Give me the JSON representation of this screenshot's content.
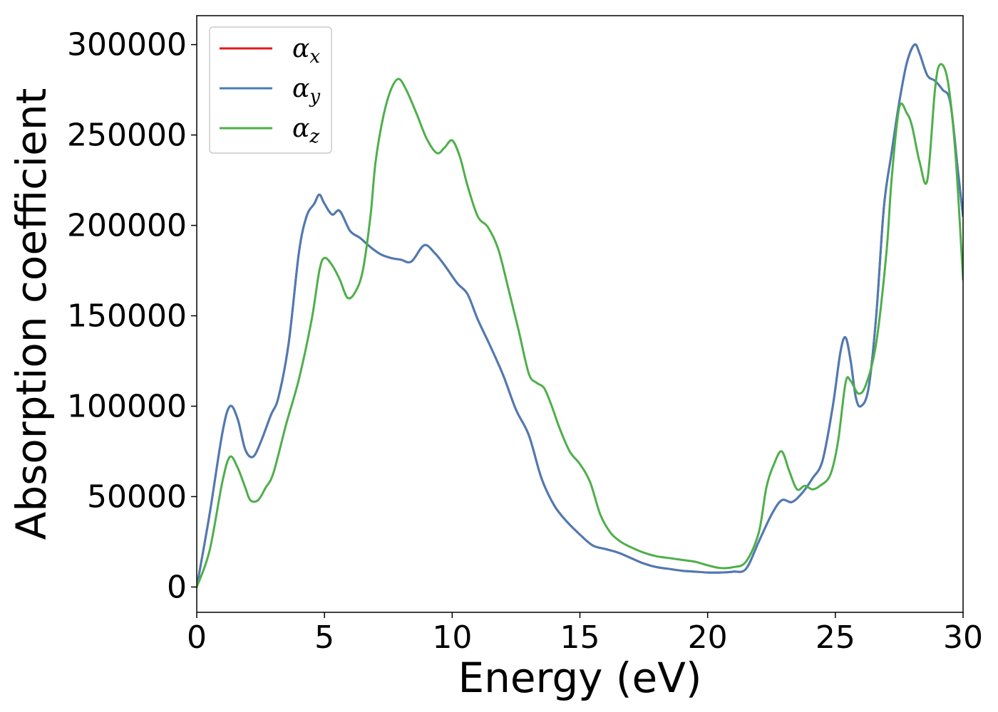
{
  "chart_data": {
    "type": "line",
    "title": "",
    "xlabel": "Energy (eV)",
    "ylabel": "Absorption coefficient",
    "xlim": [
      0,
      30
    ],
    "ylim": [
      -14000,
      316000
    ],
    "xticks": [
      0,
      5,
      10,
      15,
      20,
      25,
      30
    ],
    "xtick_labels": [
      "0",
      "5",
      "10",
      "15",
      "20",
      "25",
      "30"
    ],
    "yticks": [
      0,
      50000,
      100000,
      150000,
      200000,
      250000,
      300000
    ],
    "ytick_labels": [
      "0",
      "50000",
      "100000",
      "150000",
      "200000",
      "250000",
      "300000"
    ],
    "grid": false,
    "legend_position": "top-left",
    "series": [
      {
        "name": "α_x",
        "legend_base": "α",
        "legend_sub": "x",
        "color": "#e41a1c",
        "x": [
          0,
          0.5,
          1.0,
          1.3,
          1.6,
          1.9,
          2.2,
          2.5,
          2.9,
          3.2,
          3.6,
          4.0,
          4.3,
          4.6,
          4.8,
          5.0,
          5.3,
          5.6,
          6.0,
          6.4,
          6.8,
          7.2,
          7.6,
          8.0,
          8.4,
          8.9,
          9.3,
          9.7,
          10.2,
          10.6,
          11.0,
          11.5,
          12.0,
          12.5,
          13.0,
          13.5,
          14.0,
          14.5,
          15.0,
          15.5,
          16.0,
          16.5,
          17.0,
          17.5,
          18.0,
          18.5,
          19.0,
          19.5,
          20.0,
          20.5,
          21.0,
          21.5,
          22.0,
          22.5,
          22.9,
          23.3,
          23.7,
          24.1,
          24.5,
          24.9,
          25.2,
          25.4,
          25.6,
          25.8,
          26.0,
          26.3,
          26.6,
          26.9,
          27.2,
          27.5,
          27.8,
          28.1,
          28.3,
          28.6,
          28.9,
          29.2,
          29.5,
          29.8,
          30.0
        ],
        "y": [
          0,
          40000,
          85000,
          100000,
          93000,
          76000,
          72000,
          80000,
          95000,
          105000,
          135000,
          185000,
          205000,
          212000,
          217000,
          212000,
          206000,
          208000,
          197000,
          193000,
          188000,
          184000,
          182000,
          181000,
          180000,
          189000,
          185000,
          178000,
          168000,
          162000,
          148000,
          133000,
          117000,
          98000,
          84000,
          60000,
          45000,
          36000,
          29000,
          23000,
          21000,
          19000,
          16000,
          13000,
          11000,
          10000,
          9000,
          8500,
          8000,
          8000,
          8500,
          10000,
          25000,
          40000,
          48000,
          47000,
          52000,
          60000,
          70000,
          100000,
          130000,
          138000,
          125000,
          105000,
          100000,
          110000,
          150000,
          210000,
          240000,
          268000,
          290000,
          300000,
          295000,
          283000,
          280000,
          275000,
          268000,
          230000,
          205000
        ]
      },
      {
        "name": "α_y",
        "legend_base": "α",
        "legend_sub": "y",
        "color": "#4a7cb5",
        "x": [
          0,
          0.5,
          1.0,
          1.3,
          1.6,
          1.9,
          2.2,
          2.5,
          2.9,
          3.2,
          3.6,
          4.0,
          4.3,
          4.6,
          4.8,
          5.0,
          5.3,
          5.6,
          6.0,
          6.4,
          6.8,
          7.2,
          7.6,
          8.0,
          8.4,
          8.9,
          9.3,
          9.7,
          10.2,
          10.6,
          11.0,
          11.5,
          12.0,
          12.5,
          13.0,
          13.5,
          14.0,
          14.5,
          15.0,
          15.5,
          16.0,
          16.5,
          17.0,
          17.5,
          18.0,
          18.5,
          19.0,
          19.5,
          20.0,
          20.5,
          21.0,
          21.5,
          22.0,
          22.5,
          22.9,
          23.3,
          23.7,
          24.1,
          24.5,
          24.9,
          25.2,
          25.4,
          25.6,
          25.8,
          26.0,
          26.3,
          26.6,
          26.9,
          27.2,
          27.5,
          27.8,
          28.1,
          28.3,
          28.6,
          28.9,
          29.2,
          29.5,
          29.8,
          30.0
        ],
        "y": [
          0,
          40000,
          85000,
          100000,
          93000,
          76000,
          72000,
          80000,
          95000,
          105000,
          135000,
          185000,
          205000,
          212000,
          217000,
          212000,
          206000,
          208000,
          197000,
          193000,
          188000,
          184000,
          182000,
          181000,
          180000,
          189000,
          185000,
          178000,
          168000,
          162000,
          148000,
          133000,
          117000,
          98000,
          84000,
          60000,
          45000,
          36000,
          29000,
          23000,
          21000,
          19000,
          16000,
          13000,
          11000,
          10000,
          9000,
          8500,
          8000,
          8000,
          8500,
          10000,
          25000,
          40000,
          48000,
          47000,
          52000,
          60000,
          70000,
          100000,
          130000,
          138000,
          125000,
          105000,
          100000,
          110000,
          150000,
          210000,
          240000,
          268000,
          290000,
          300000,
          295000,
          283000,
          280000,
          275000,
          268000,
          230000,
          205000
        ]
      },
      {
        "name": "α_z",
        "legend_base": "α",
        "legend_sub": "z",
        "color": "#4daf4a",
        "x": [
          0,
          0.5,
          1.0,
          1.3,
          1.6,
          1.9,
          2.1,
          2.4,
          2.7,
          3.0,
          3.5,
          4.0,
          4.5,
          4.8,
          5.0,
          5.3,
          5.6,
          5.9,
          6.2,
          6.5,
          6.8,
          7.0,
          7.3,
          7.6,
          7.9,
          8.2,
          8.6,
          9.0,
          9.4,
          9.7,
          10.0,
          10.3,
          10.6,
          11.0,
          11.4,
          11.8,
          12.2,
          12.6,
          13.0,
          13.3,
          13.6,
          13.9,
          14.2,
          14.6,
          15.0,
          15.4,
          15.8,
          16.2,
          16.6,
          17.0,
          17.5,
          18.0,
          18.5,
          19.0,
          19.5,
          20.0,
          20.5,
          21.0,
          21.5,
          22.0,
          22.3,
          22.6,
          22.9,
          23.2,
          23.5,
          23.8,
          24.1,
          24.4,
          24.8,
          25.1,
          25.4,
          25.6,
          25.9,
          26.2,
          26.6,
          27.0,
          27.2,
          27.5,
          27.8,
          28.0,
          28.3,
          28.6,
          28.9,
          29.1,
          29.4,
          29.7,
          30.0
        ],
        "y": [
          0,
          20000,
          58000,
          72000,
          66000,
          55000,
          48000,
          48000,
          55000,
          63000,
          90000,
          115000,
          148000,
          175000,
          182000,
          178000,
          170000,
          160000,
          163000,
          175000,
          205000,
          235000,
          260000,
          275000,
          281000,
          275000,
          262000,
          248000,
          240000,
          243000,
          247000,
          238000,
          222000,
          205000,
          199000,
          187000,
          165000,
          142000,
          118000,
          113000,
          110000,
          100000,
          88000,
          75000,
          68000,
          58000,
          40000,
          30000,
          25000,
          22000,
          19000,
          17000,
          16000,
          15000,
          14000,
          12000,
          10500,
          11000,
          14000,
          30000,
          55000,
          68000,
          75000,
          64000,
          54000,
          56000,
          54000,
          56000,
          62000,
          80000,
          113000,
          114000,
          107000,
          112000,
          135000,
          185000,
          225000,
          265000,
          262000,
          255000,
          235000,
          225000,
          275000,
          289000,
          280000,
          240000,
          170000
        ]
      }
    ]
  }
}
